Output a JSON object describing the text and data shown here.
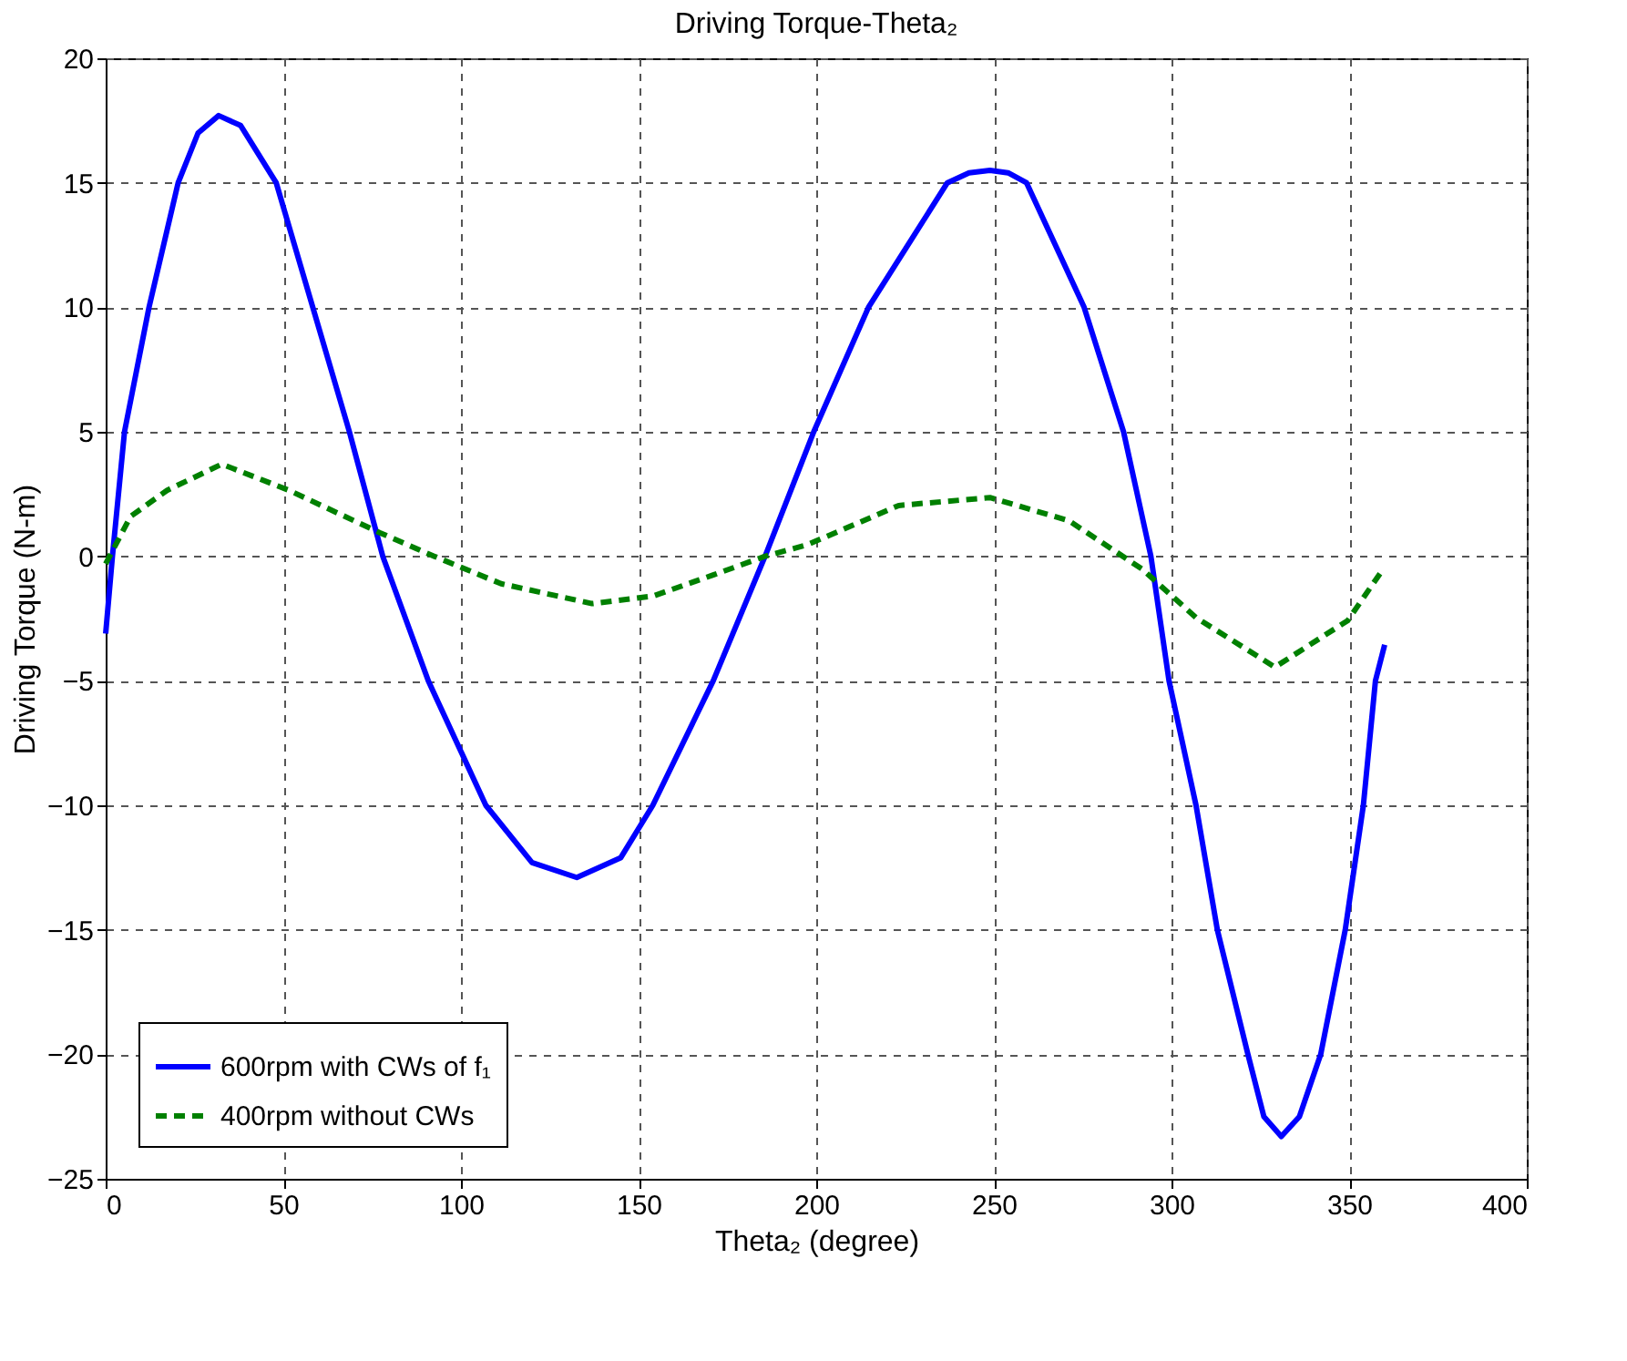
{
  "chart_data": {
    "type": "line",
    "title": "Driving Torque-Theta₂",
    "xlabel": "Theta₂ (degree)",
    "ylabel": "Driving Torque (N-m)",
    "xlim": [
      0,
      400
    ],
    "xticks": [
      0,
      50,
      100,
      150,
      200,
      250,
      300,
      350,
      400
    ],
    "ylim": [
      -25,
      20
    ],
    "yticks": [
      -25,
      -20,
      -15,
      -10,
      -5,
      0,
      5,
      10,
      15,
      20
    ],
    "grid": true,
    "legend": "bottom left",
    "marker": "none",
    "series": [
      {
        "name": "600rpm with CWs of f₁",
        "color": "#0000ff",
        "line_style": "solid",
        "x": [
          0,
          1.9,
          5.3,
          12.2,
          20.4,
          26,
          31.8,
          38,
          48,
          58.3,
          68.6,
          78,
          90.8,
          107,
          120,
          132.6,
          145,
          154,
          171,
          185.6,
          199.3,
          214.7,
          236.9,
          243,
          248.9,
          254,
          259.2,
          275.4,
          286.5,
          294.2,
          299.3,
          306.9,
          312.9,
          321.5,
          326,
          330.9,
          336,
          342,
          348.9,
          354,
          357.4,
          360
        ],
        "values": [
          -3.1,
          0,
          5,
          10,
          15,
          17,
          17.7,
          17.3,
          15,
          10,
          5,
          0,
          -5,
          -10,
          -12.3,
          -12.9,
          -12.1,
          -10,
          -5,
          0,
          5,
          10,
          15,
          15.4,
          15.5,
          15.4,
          15,
          10,
          5,
          0,
          -5,
          -10,
          -15,
          -20,
          -22.5,
          -23.3,
          -22.5,
          -20,
          -15,
          -10,
          -5,
          -3.55
        ]
      },
      {
        "name": "400rpm without CWs",
        "color": "#008000",
        "line_style": "dashed",
        "x": [
          0,
          7,
          17.3,
          32.7,
          51.6,
          77.1,
          92.5,
          111.3,
          136.9,
          154,
          171,
          185.6,
          197.6,
          223.2,
          248.9,
          271.1,
          291.6,
          306.9,
          329.1,
          349.6,
          359
        ],
        "values": [
          -0.3,
          1.6,
          2.65,
          3.7,
          2.65,
          0.95,
          0,
          -1.1,
          -1.9,
          -1.6,
          -0.75,
          0,
          0.47,
          2.04,
          2.36,
          1.43,
          -0.5,
          -2.46,
          -4.45,
          -2.58,
          -0.63
        ]
      }
    ]
  }
}
